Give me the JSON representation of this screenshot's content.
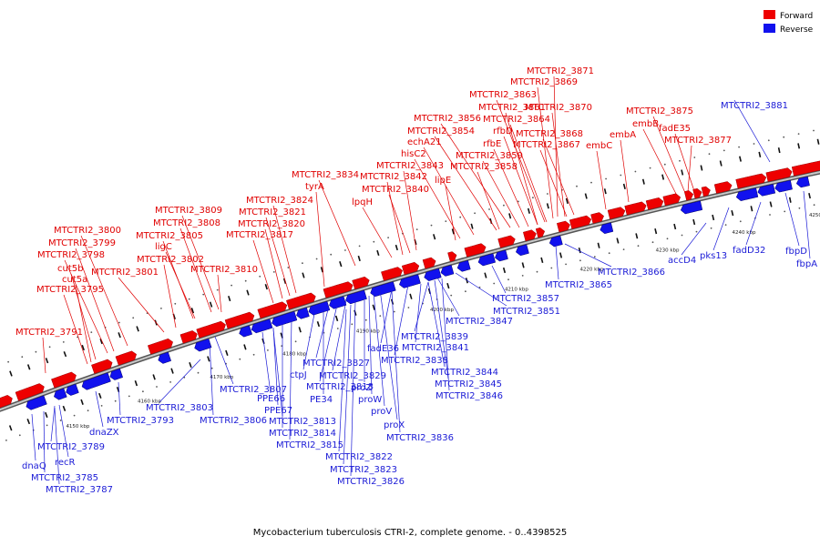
{
  "caption": "Mycobacterium tuberculosis CTRI-2, complete genome. - 0..4398525",
  "legend": [
    {
      "label": "Forward",
      "color": "#ee0000"
    },
    {
      "label": "Reverse",
      "color": "#1111ee"
    }
  ],
  "ticks": [
    {
      "label": "4150 kbp",
      "t": 0.085
    },
    {
      "label": "4160 kbp",
      "t": 0.175
    },
    {
      "label": "4170 kbp",
      "t": 0.265
    },
    {
      "label": "4180 kbp",
      "t": 0.355
    },
    {
      "label": "4190 kbp",
      "t": 0.445
    },
    {
      "label": "4200 kbp",
      "t": 0.535
    },
    {
      "label": "4210 kbp",
      "t": 0.625
    },
    {
      "label": "4220 kbp",
      "t": 0.715
    },
    {
      "label": "4230 kbp",
      "t": 0.805
    },
    {
      "label": "4240 kbp",
      "t": 0.895
    },
    {
      "label": "4250 kbp",
      "t": 0.985
    }
  ],
  "forward_labels": [
    "MTCTRI2_3871",
    "MTCTRI2_3869",
    "MTCTRI2_3863",
    "MTCTRI2_3861",
    "MTCTRI2_3870",
    "MTCTRI2_3875",
    "MTCTRI2_3856",
    "MTCTRI2_3864",
    "embB",
    "MTCTRI2_3854",
    "rfbD",
    "MTCTRI2_3868",
    "fadE35",
    "echA21",
    "rfbE",
    "MTCTRI2_3867",
    "embA",
    "embC",
    "MTCTRI2_3877",
    "hisC2",
    "MTCTRI2_3859",
    "MTCTRI2_3843",
    "MTCTRI2_3858",
    "MTCTRI2_3834",
    "MTCTRI2_3842",
    "lipE",
    "tyrA",
    "MTCTRI2_3840",
    "MTCTRI2_3824",
    "lpqH",
    "MTCTRI2_3821",
    "MTCTRI2_3809",
    "MTCTRI2_3820",
    "MTCTRI2_3808",
    "MTCTRI2_3800",
    "MTCTRI2_3817",
    "MTCTRI2_3805",
    "MTCTRI2_3799",
    "ligC",
    "MTCTRI2_3798",
    "MTCTRI2_3802",
    "cut5b",
    "MTCTRI2_3810",
    "MTCTRI2_3801",
    "cut5a",
    "MTCTRI2_3795",
    "MTCTRI2_3791"
  ],
  "reverse_labels": [
    "MTCTRI2_3881",
    "accD4",
    "pks13",
    "fadD32",
    "fbpD",
    "fbpA",
    "MTCTRI2_3866",
    "MTCTRI2_3865",
    "MTCTRI2_3857",
    "MTCTRI2_3851",
    "MTCTRI2_3847",
    "MTCTRI2_3839",
    "MTCTRI2_3841",
    "fadE36",
    "MTCTRI2_3838",
    "MTCTRI2_3844",
    "MTCTRI2_3845",
    "MTCTRI2_3846",
    "MTCTRI2_3827",
    "ctpJ",
    "MTCTRI2_3829",
    "MTCTRI2_3818",
    "proZ",
    "PE34",
    "proW",
    "proV",
    "proX",
    "MTCTRI2_3836",
    "MTCTRI2_3807",
    "PPE66",
    "PPE67",
    "MTCTRI2_3813",
    "MTCTRI2_3814",
    "MTCTRI2_3815",
    "MTCTRI2_3822",
    "MTCTRI2_3823",
    "MTCTRI2_3826",
    "MTCTRI2_3806",
    "MTCTRI2_3803",
    "MTCTRI2_3793",
    "dnaZX",
    "MTCTRI2_3789",
    "recR",
    "dnaQ",
    "MTCTRI2_3785",
    "MTCTRI2_3787"
  ]
}
